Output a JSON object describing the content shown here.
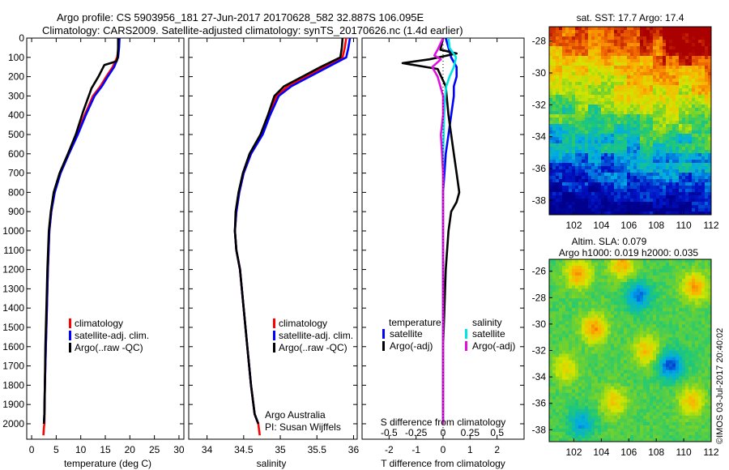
{
  "header": {
    "line1": "Argo profile: CS 5903956_181 27-Jun-2017 20170628_582 32.887S 106.095E",
    "line2": "Climatology: CARS2009. Satellite-adjusted climatology: synTS_20170626.nc (1.4d earlier)"
  },
  "colors": {
    "climatology": "#ff0000",
    "satellite": "#0000ff",
    "argo": "#000000",
    "sal_satellite": "#00e5e5",
    "sal_argo": "#e010e0"
  },
  "chart_data": [
    {
      "id": "temperature",
      "type": "line",
      "xlabel": "temperature (deg C)",
      "ylabel": "",
      "xlim": [
        -1,
        31
      ],
      "ylim": [
        2080,
        0
      ],
      "xticks": [
        "0",
        "5",
        "10",
        "15",
        "20",
        "25",
        "30"
      ],
      "yticks": [
        "0",
        "100",
        "200",
        "300",
        "400",
        "500",
        "600",
        "700",
        "800",
        "900",
        "1000",
        "1100",
        "1200",
        "1300",
        "1400",
        "1500",
        "1600",
        "1700",
        "1800",
        "1900",
        "2000"
      ],
      "legend": [
        "climatology",
        "satellite-adj. clim.",
        "Argo(..raw -QC)"
      ],
      "series": [
        {
          "name": "climatology",
          "x": [
            17.8,
            17.7,
            17.4,
            16.5,
            15.2,
            14.0,
            12.5,
            10.8,
            9.2,
            7.5,
            5.8,
            4.6,
            4.0,
            3.6,
            3.3,
            3.1,
            2.9,
            2.7,
            2.6,
            2.5,
            2.45,
            2.4
          ],
          "y": [
            0,
            50,
            100,
            150,
            200,
            250,
            300,
            400,
            500,
            600,
            700,
            800,
            900,
            1000,
            1200,
            1400,
            1600,
            1800,
            2000,
            2020,
            2040,
            2060
          ]
        },
        {
          "name": "satellite-adj. clim.",
          "x": [
            17.9,
            17.8,
            17.6,
            16.8,
            15.5,
            14.3,
            12.8,
            11.0,
            9.4,
            7.6,
            5.9,
            4.7,
            4.0,
            3.6,
            3.3,
            3.1,
            2.9,
            2.7,
            2.6,
            2.5
          ],
          "y": [
            0,
            50,
            100,
            150,
            200,
            250,
            300,
            400,
            500,
            600,
            700,
            800,
            900,
            1000,
            1200,
            1400,
            1600,
            1800,
            1950,
            2000
          ]
        },
        {
          "name": "Argo(..raw -QC)",
          "x": [
            17.6,
            17.6,
            17.5,
            17.3,
            14.8,
            13.6,
            12.2,
            10.5,
            9.0,
            7.4,
            5.7,
            4.5,
            3.9,
            3.5,
            3.2,
            3.0,
            2.8,
            2.7,
            2.6,
            2.5
          ],
          "y": [
            0,
            50,
            100,
            120,
            140,
            200,
            260,
            380,
            500,
            600,
            700,
            800,
            900,
            1000,
            1200,
            1400,
            1600,
            1800,
            1950,
            2000
          ]
        }
      ]
    },
    {
      "id": "salinity",
      "type": "line",
      "xlabel": "salinity",
      "xlim": [
        33.75,
        36.05
      ],
      "ylim": [
        2080,
        0
      ],
      "xticks": [
        "34",
        "34.5",
        "35",
        "35.5",
        "36"
      ],
      "legend": [
        "climatology",
        "satellite-adj. clim.",
        "Argo(..raw -QC)"
      ],
      "annotation": [
        "Argo Australia",
        "PI: Susan Wijffels"
      ],
      "series": [
        {
          "name": "climatology",
          "x": [
            35.9,
            35.88,
            35.85,
            35.6,
            35.35,
            35.1,
            34.95,
            34.85,
            34.75,
            34.6,
            34.5,
            34.44,
            34.4,
            34.38,
            34.4,
            34.45,
            34.5,
            34.55,
            34.6,
            34.65,
            34.7,
            34.72
          ],
          "y": [
            0,
            50,
            100,
            150,
            200,
            250,
            300,
            400,
            500,
            600,
            700,
            800,
            900,
            1000,
            1100,
            1200,
            1400,
            1600,
            1800,
            1950,
            2000,
            2060
          ]
        },
        {
          "name": "satellite-adj. clim.",
          "x": [
            35.95,
            35.93,
            35.9,
            35.65,
            35.4,
            35.15,
            34.98,
            34.86,
            34.76,
            34.6,
            34.5,
            34.44,
            34.4,
            34.38,
            34.4,
            34.45,
            34.5,
            34.55,
            34.6,
            34.65,
            34.7
          ],
          "y": [
            0,
            50,
            100,
            150,
            200,
            250,
            300,
            400,
            500,
            600,
            700,
            800,
            900,
            1000,
            1100,
            1200,
            1400,
            1600,
            1800,
            1950,
            2000
          ]
        },
        {
          "name": "Argo(..raw -QC)",
          "x": [
            35.85,
            35.84,
            35.82,
            35.55,
            35.3,
            35.05,
            34.92,
            34.83,
            34.73,
            34.58,
            34.49,
            34.43,
            34.39,
            34.38,
            34.4,
            34.45,
            34.5,
            34.55,
            34.6,
            34.65,
            34.7
          ],
          "y": [
            0,
            50,
            100,
            150,
            200,
            250,
            300,
            400,
            500,
            600,
            700,
            800,
            900,
            1000,
            1100,
            1200,
            1400,
            1600,
            1800,
            1950,
            2000
          ]
        }
      ]
    },
    {
      "id": "difference",
      "type": "line",
      "xlabel": "T difference from climatology",
      "xlim": [
        -3,
        3
      ],
      "ylim": [
        2080,
        0
      ],
      "xticks": [
        "-2",
        "-1",
        "0",
        "1",
        "2"
      ],
      "top_label": "S difference from climatology",
      "top_ticks": [
        "-0.5",
        "-0.25",
        "0",
        "0.25",
        "0.5"
      ],
      "top_lim": [
        -0.75,
        0.75
      ],
      "legend_titles": [
        "temperature",
        "salinity"
      ],
      "legend": [
        "satellite",
        "Argo(-adj)",
        "satellite",
        "Argo(-adj)"
      ],
      "series": [
        {
          "name": "temperature satellite",
          "x": [
            0.1,
            0.2,
            0.3,
            0.5,
            0.5,
            0.4,
            0.4,
            0.3,
            0.2,
            0.1,
            0.05,
            0.0,
            0.0,
            0.0,
            0.0,
            0.0,
            0.0,
            0.0,
            0.0,
            0.0
          ],
          "y": [
            0,
            50,
            100,
            150,
            200,
            250,
            300,
            400,
            500,
            600,
            700,
            800,
            900,
            1000,
            1200,
            1400,
            1600,
            1800,
            1950,
            2000
          ]
        },
        {
          "name": "temperature Argo(-adj)",
          "x": [
            0.0,
            -0.1,
            0.5,
            -0.5,
            -1.5,
            -0.2,
            0.1,
            0.2,
            0.3,
            0.4,
            0.5,
            0.6,
            0.5,
            0.3,
            0.2,
            0.1,
            0.05,
            0.0,
            0.0,
            0.0
          ],
          "y": [
            0,
            60,
            80,
            110,
            130,
            160,
            250,
            400,
            500,
            600,
            700,
            800,
            850,
            900,
            1000,
            1200,
            1400,
            1600,
            1800,
            2000
          ]
        },
        {
          "name": "salinity satellite",
          "x": [
            0.05,
            0.06,
            0.12,
            0.1,
            0.06,
            0.03,
            0.02,
            0.01,
            0.005,
            0.0,
            0.0,
            0.0,
            0.0,
            0.0,
            0.0,
            0.0,
            0.0,
            0.0,
            0.0,
            0.0
          ],
          "y": [
            0,
            50,
            100,
            150,
            200,
            250,
            300,
            400,
            500,
            600,
            700,
            800,
            900,
            1000,
            1200,
            1400,
            1600,
            1800,
            1950,
            2000
          ]
        },
        {
          "name": "salinity Argo(-adj)",
          "x": [
            0.0,
            -0.05,
            -0.08,
            -0.02,
            -0.1,
            -0.05,
            0.0,
            0.0,
            -0.02,
            -0.01,
            0.0,
            0.0,
            0.0,
            0.0,
            0.0,
            0.0,
            0.0,
            0.0,
            0.0,
            0.0
          ],
          "y": [
            0,
            60,
            90,
            110,
            150,
            200,
            300,
            400,
            500,
            600,
            700,
            800,
            900,
            1000,
            1200,
            1400,
            1600,
            1800,
            1950,
            2000
          ]
        }
      ]
    },
    {
      "id": "sst_map",
      "type": "heatmap",
      "title": "sat. SST: 17.7 Argo: 17.4",
      "xticks": [
        "102",
        "104",
        "106",
        "108",
        "110",
        "112"
      ],
      "yticks": [
        "-28",
        "-30",
        "-32",
        "-34",
        "-36",
        "-38"
      ],
      "xlim": [
        100.2,
        112
      ],
      "ylim": [
        -38.9,
        -27.1
      ]
    },
    {
      "id": "sla_map",
      "type": "heatmap",
      "title": [
        "Altim. SLA: 0.079",
        "Argo h1000: 0.019 h2000: 0.035"
      ],
      "xticks": [
        "102",
        "104",
        "106",
        "108",
        "110",
        "112"
      ],
      "yticks": [
        "-26",
        "-28",
        "-30",
        "-32",
        "-34",
        "-36",
        "-38"
      ],
      "xlim": [
        100.2,
        112
      ],
      "ylim": [
        -38.9,
        -25.1
      ]
    }
  ],
  "credit": "©IMOS 03-Jul-2017 20:40:02"
}
